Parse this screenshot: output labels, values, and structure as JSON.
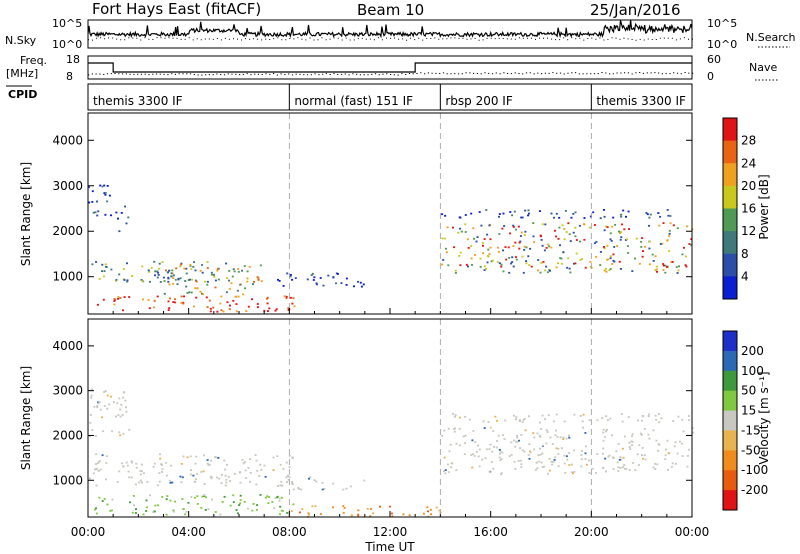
{
  "header": {
    "station": "Fort Hays East (fitACF)",
    "beam": "Beam 10",
    "date": "25/Jan/2016"
  },
  "top_panels": {
    "nsky_label": "N.Sky",
    "nsearch_label": "N.Search",
    "nsky_ticks": [
      "10^5",
      "10^0"
    ],
    "nsky_right_ticks": [
      "10^5",
      "10^0"
    ],
    "freq_label": "Freq.",
    "freq_unit": "[MHz]",
    "freq_ticks": [
      "18",
      "8"
    ],
    "nave_label": "Nave",
    "nave_ticks": [
      "60",
      "0"
    ],
    "cpid_label": "CPID"
  },
  "chart_data": [
    {
      "type": "heatmap",
      "title": "",
      "xlabel": "Time UT",
      "ylabel": "Slant Range [km]",
      "x_ticks": [
        "00:00",
        "04:00",
        "08:00",
        "12:00",
        "16:00",
        "20:00",
        "00:00"
      ],
      "xlim": [
        0,
        24
      ],
      "ylim": [
        180,
        4600
      ],
      "y_ticks": [
        1000,
        2000,
        3000,
        4000
      ],
      "colorbar": {
        "label": "Power [dB]",
        "ticks": [
          "28",
          "24",
          "20",
          "16",
          "12",
          "8",
          "4"
        ],
        "range": [
          0,
          30
        ],
        "colors": [
          "#0a1ed2",
          "#2b4ea8",
          "#3f7a7a",
          "#4f9a55",
          "#c8c81e",
          "#f0a020",
          "#e86414",
          "#e01414"
        ]
      },
      "modes": [
        {
          "label": "themis 3300 IF",
          "start": 0,
          "end": 8
        },
        {
          "label": "normal (fast) 151 IF",
          "start": 8,
          "end": 14
        },
        {
          "label": "rbsp 200 IF",
          "start": 14,
          "end": 20
        },
        {
          "label": "themis 3300 IF",
          "start": 20,
          "end": 24
        }
      ],
      "regions": [
        {
          "t": [
            0.0,
            1.0
          ],
          "r": [
            2350,
            3050
          ],
          "dominant": "8 dB"
        },
        {
          "t": [
            1.0,
            1.6
          ],
          "r": [
            2000,
            2600
          ],
          "dominant": "8 dB"
        },
        {
          "t": [
            0.0,
            5.8
          ],
          "r": [
            900,
            1350
          ],
          "dominant": "12 dB"
        },
        {
          "t": [
            3.0,
            7.0
          ],
          "r": [
            600,
            1300
          ],
          "dominant": "20 dB"
        },
        {
          "t": [
            0.3,
            8.2
          ],
          "r": [
            250,
            600
          ],
          "dominant": "28 dB"
        },
        {
          "t": [
            7.5,
            11.0
          ],
          "r": [
            800,
            1100
          ],
          "dominant": "8 dB"
        },
        {
          "t": [
            14.0,
            24.0
          ],
          "r": [
            1100,
            2200
          ],
          "dominant": "20 dB"
        },
        {
          "t": [
            14.0,
            24.0
          ],
          "r": [
            2300,
            2500
          ],
          "dominant": "8 dB"
        }
      ]
    },
    {
      "type": "heatmap",
      "title": "",
      "xlabel": "Time UT",
      "ylabel": "Slant Range [km]",
      "x_ticks": [
        "00:00",
        "04:00",
        "08:00",
        "12:00",
        "16:00",
        "20:00",
        "00:00"
      ],
      "xlim": [
        0,
        24
      ],
      "ylim": [
        180,
        4600
      ],
      "y_ticks": [
        1000,
        2000,
        3000,
        4000
      ],
      "colorbar": {
        "label": "Velocity [m s⁻¹]",
        "ticks": [
          "200",
          "100",
          "50",
          "15",
          "-15",
          "-50",
          "-100",
          "-200"
        ],
        "range": [
          -250,
          250
        ],
        "colors": [
          "#e01414",
          "#e85a10",
          "#f08c1e",
          "#e8b450",
          "#c8c8c0",
          "#80c840",
          "#3c9a3c",
          "#2a6ab4",
          "#1e2ec8"
        ]
      },
      "regions": [
        {
          "t": [
            0.0,
            1.6
          ],
          "r": [
            2000,
            3050
          ],
          "dominant": "-15..15"
        },
        {
          "t": [
            0.0,
            8.2
          ],
          "r": [
            900,
            1600
          ],
          "dominant": "-15..15"
        },
        {
          "t": [
            7.5,
            11.0
          ],
          "r": [
            800,
            1100
          ],
          "dominant": "-15..15"
        },
        {
          "t": [
            0.2,
            8.2
          ],
          "r": [
            250,
            700
          ],
          "dominant": "50"
        },
        {
          "t": [
            8.0,
            14.0
          ],
          "r": [
            200,
            450
          ],
          "dominant": "-50"
        },
        {
          "t": [
            14.0,
            24.0
          ],
          "r": [
            1150,
            2200
          ],
          "dominant": "-15..15"
        },
        {
          "t": [
            14.0,
            24.0
          ],
          "r": [
            2300,
            2500
          ],
          "dominant": "-15..15"
        }
      ]
    }
  ]
}
